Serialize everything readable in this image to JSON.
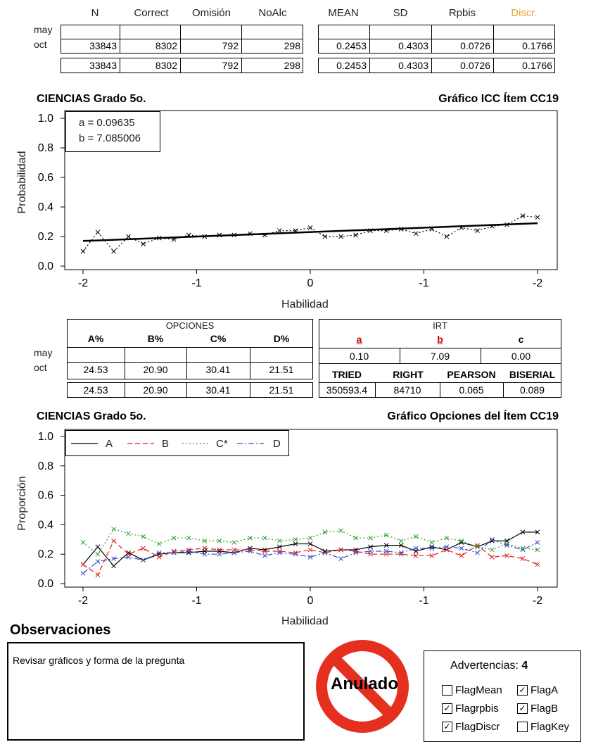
{
  "stats_table": {
    "headers_left": [
      "N",
      "Correct",
      "Omisión",
      "NoAlc"
    ],
    "headers_right": [
      "MEAN",
      "SD",
      "Rpbis",
      "Discr."
    ],
    "discr_header_color": "#f0a030",
    "row_labels": [
      "may",
      "oct"
    ],
    "row_oct_left": [
      "33843",
      "8302",
      "792",
      "298"
    ],
    "row_oct_right": [
      "0.2453",
      "0.4303",
      "0.0726",
      "0.1766"
    ],
    "row_total_left": [
      "33843",
      "8302",
      "792",
      "298"
    ],
    "row_total_right": [
      "0.2453",
      "0.4303",
      "0.0726",
      "0.1766"
    ]
  },
  "icc_chart": {
    "subject_title": "CIENCIAS Grado 5o.",
    "chart_title": "Gráfico ICC Ítem CC19",
    "param_a_text": "a = 0.09635",
    "param_b_text": "b = 7.085006",
    "ylabel": "Probabilidad",
    "xlabel": "Habilidad"
  },
  "options_table": {
    "title": "OPCIONES",
    "headers": [
      "A%",
      "B%",
      "C%",
      "D%"
    ],
    "row_labels": [
      "may",
      "oct"
    ],
    "row_oct": [
      "24.53",
      "20.90",
      "30.41",
      "21.51"
    ],
    "row_total": [
      "24.53",
      "20.90",
      "30.41",
      "21.51"
    ]
  },
  "irt_table": {
    "title": "IRT",
    "headers": [
      "a",
      "b",
      "c"
    ],
    "highlight_color": "#cc0000",
    "values": [
      "0.10",
      "7.09",
      "0.00"
    ],
    "stat_headers": [
      "TRIED",
      "RIGHT",
      "PEARSON",
      "BISERIAL"
    ],
    "stat_values": [
      "350593.4",
      "84710",
      "0.065",
      "0.089"
    ]
  },
  "options_chart": {
    "subject_title": "CIENCIAS Grado 5o.",
    "chart_title": "Gráfico Opciones del Ítem CC19",
    "ylabel": "Proporción",
    "xlabel": "Habilidad",
    "legend": [
      "A",
      "B",
      "C*",
      "D"
    ]
  },
  "observations": {
    "heading": "Observaciones",
    "text": "Revisar gráficos y forma de la pregunta"
  },
  "stamp": {
    "text": "Anulado",
    "color": "#e53020"
  },
  "warnings": {
    "label": "Advertencias:",
    "count": "4",
    "flags": [
      {
        "name": "FlagMean",
        "checked": false
      },
      {
        "name": "FlagA",
        "checked": true
      },
      {
        "name": "Flagrpbis",
        "checked": true
      },
      {
        "name": "FlagB",
        "checked": true
      },
      {
        "name": "FlagDiscr",
        "checked": true
      },
      {
        "name": "FlagKey",
        "checked": false
      }
    ]
  },
  "chart_data": [
    {
      "type": "line",
      "title": "Gráfico ICC Ítem CC19",
      "xlabel": "Habilidad",
      "ylabel": "Probabilidad",
      "ylim": [
        0,
        1
      ],
      "x_tick_labels": [
        "-2",
        "-1",
        "0",
        "-1",
        "-2"
      ],
      "y_tick_labels": [
        "0.0",
        "0.2",
        "0.4",
        "0.6",
        "0.8",
        "1.0"
      ],
      "xlim": [
        -2,
        2
      ],
      "series": [
        {
          "color": "#000000",
          "style": "dotted",
          "marker": "x",
          "x": [
            -2.0,
            -1.87,
            -1.73,
            -1.6,
            -1.47,
            -1.33,
            -1.2,
            -1.07,
            -0.93,
            -0.8,
            -0.67,
            -0.53,
            -0.4,
            -0.27,
            -0.13,
            0.0,
            0.13,
            0.27,
            0.4,
            0.53,
            0.67,
            0.8,
            0.93,
            1.07,
            1.2,
            1.33,
            1.47,
            1.6,
            1.73,
            1.87,
            2.0
          ],
          "values": [
            0.1,
            0.23,
            0.1,
            0.2,
            0.15,
            0.19,
            0.18,
            0.21,
            0.2,
            0.21,
            0.21,
            0.22,
            0.21,
            0.24,
            0.24,
            0.26,
            0.2,
            0.2,
            0.21,
            0.24,
            0.24,
            0.25,
            0.22,
            0.25,
            0.2,
            0.26,
            0.24,
            0.27,
            0.28,
            0.34,
            0.33
          ]
        },
        {
          "color": "#000000",
          "style": "solid",
          "x": [
            -2.0,
            2.0
          ],
          "values": [
            0.17,
            0.29
          ]
        }
      ]
    },
    {
      "type": "line",
      "title": "Gráfico Opciones del Ítem CC19",
      "xlabel": "Habilidad",
      "ylabel": "Proporción",
      "ylim": [
        0,
        1
      ],
      "x_tick_labels": [
        "-2",
        "-1",
        "0",
        "-1",
        "-2"
      ],
      "y_tick_labels": [
        "0.0",
        "0.2",
        "0.4",
        "0.6",
        "0.8",
        "1.0"
      ],
      "xlim": [
        -2,
        2
      ],
      "legend_position": "top-left",
      "x": [
        -2.0,
        -1.87,
        -1.73,
        -1.6,
        -1.47,
        -1.33,
        -1.2,
        -1.07,
        -0.93,
        -0.8,
        -0.67,
        -0.53,
        -0.4,
        -0.27,
        -0.13,
        0.0,
        0.13,
        0.27,
        0.4,
        0.53,
        0.67,
        0.8,
        0.93,
        1.07,
        1.2,
        1.33,
        1.47,
        1.6,
        1.73,
        1.87,
        2.0
      ],
      "series": [
        {
          "name": "A",
          "color": "#000000",
          "style": "solid",
          "values": [
            0.13,
            0.25,
            0.12,
            0.21,
            0.16,
            0.2,
            0.21,
            0.21,
            0.22,
            0.22,
            0.21,
            0.24,
            0.23,
            0.25,
            0.27,
            0.27,
            0.22,
            0.23,
            0.23,
            0.25,
            0.26,
            0.26,
            0.22,
            0.25,
            0.23,
            0.28,
            0.25,
            0.29,
            0.29,
            0.35,
            0.35
          ]
        },
        {
          "name": "B",
          "color": "#e41a1c",
          "style": "dashed",
          "values": [
            0.13,
            0.06,
            0.29,
            0.2,
            0.24,
            0.18,
            0.22,
            0.23,
            0.24,
            0.23,
            0.23,
            0.23,
            0.22,
            0.22,
            0.21,
            0.23,
            0.21,
            0.23,
            0.22,
            0.2,
            0.2,
            0.2,
            0.19,
            0.19,
            0.23,
            0.19,
            0.26,
            0.18,
            0.19,
            0.17,
            0.13
          ]
        },
        {
          "name": "C*",
          "color": "#2ca02c",
          "style": "dotted",
          "values": [
            0.28,
            0.2,
            0.37,
            0.34,
            0.32,
            0.27,
            0.31,
            0.31,
            0.29,
            0.29,
            0.28,
            0.31,
            0.31,
            0.29,
            0.3,
            0.31,
            0.35,
            0.36,
            0.31,
            0.31,
            0.33,
            0.29,
            0.32,
            0.28,
            0.31,
            0.29,
            0.25,
            0.23,
            0.27,
            0.24,
            0.23
          ]
        },
        {
          "name": "D",
          "color": "#3b4fc4",
          "style": "dashdot",
          "values": [
            0.07,
            0.15,
            0.17,
            0.18,
            0.16,
            0.21,
            0.21,
            0.22,
            0.2,
            0.2,
            0.21,
            0.22,
            0.19,
            0.21,
            0.2,
            0.18,
            0.21,
            0.17,
            0.21,
            0.22,
            0.22,
            0.21,
            0.24,
            0.24,
            0.25,
            0.24,
            0.21,
            0.3,
            0.26,
            0.23,
            0.28
          ]
        }
      ]
    }
  ]
}
